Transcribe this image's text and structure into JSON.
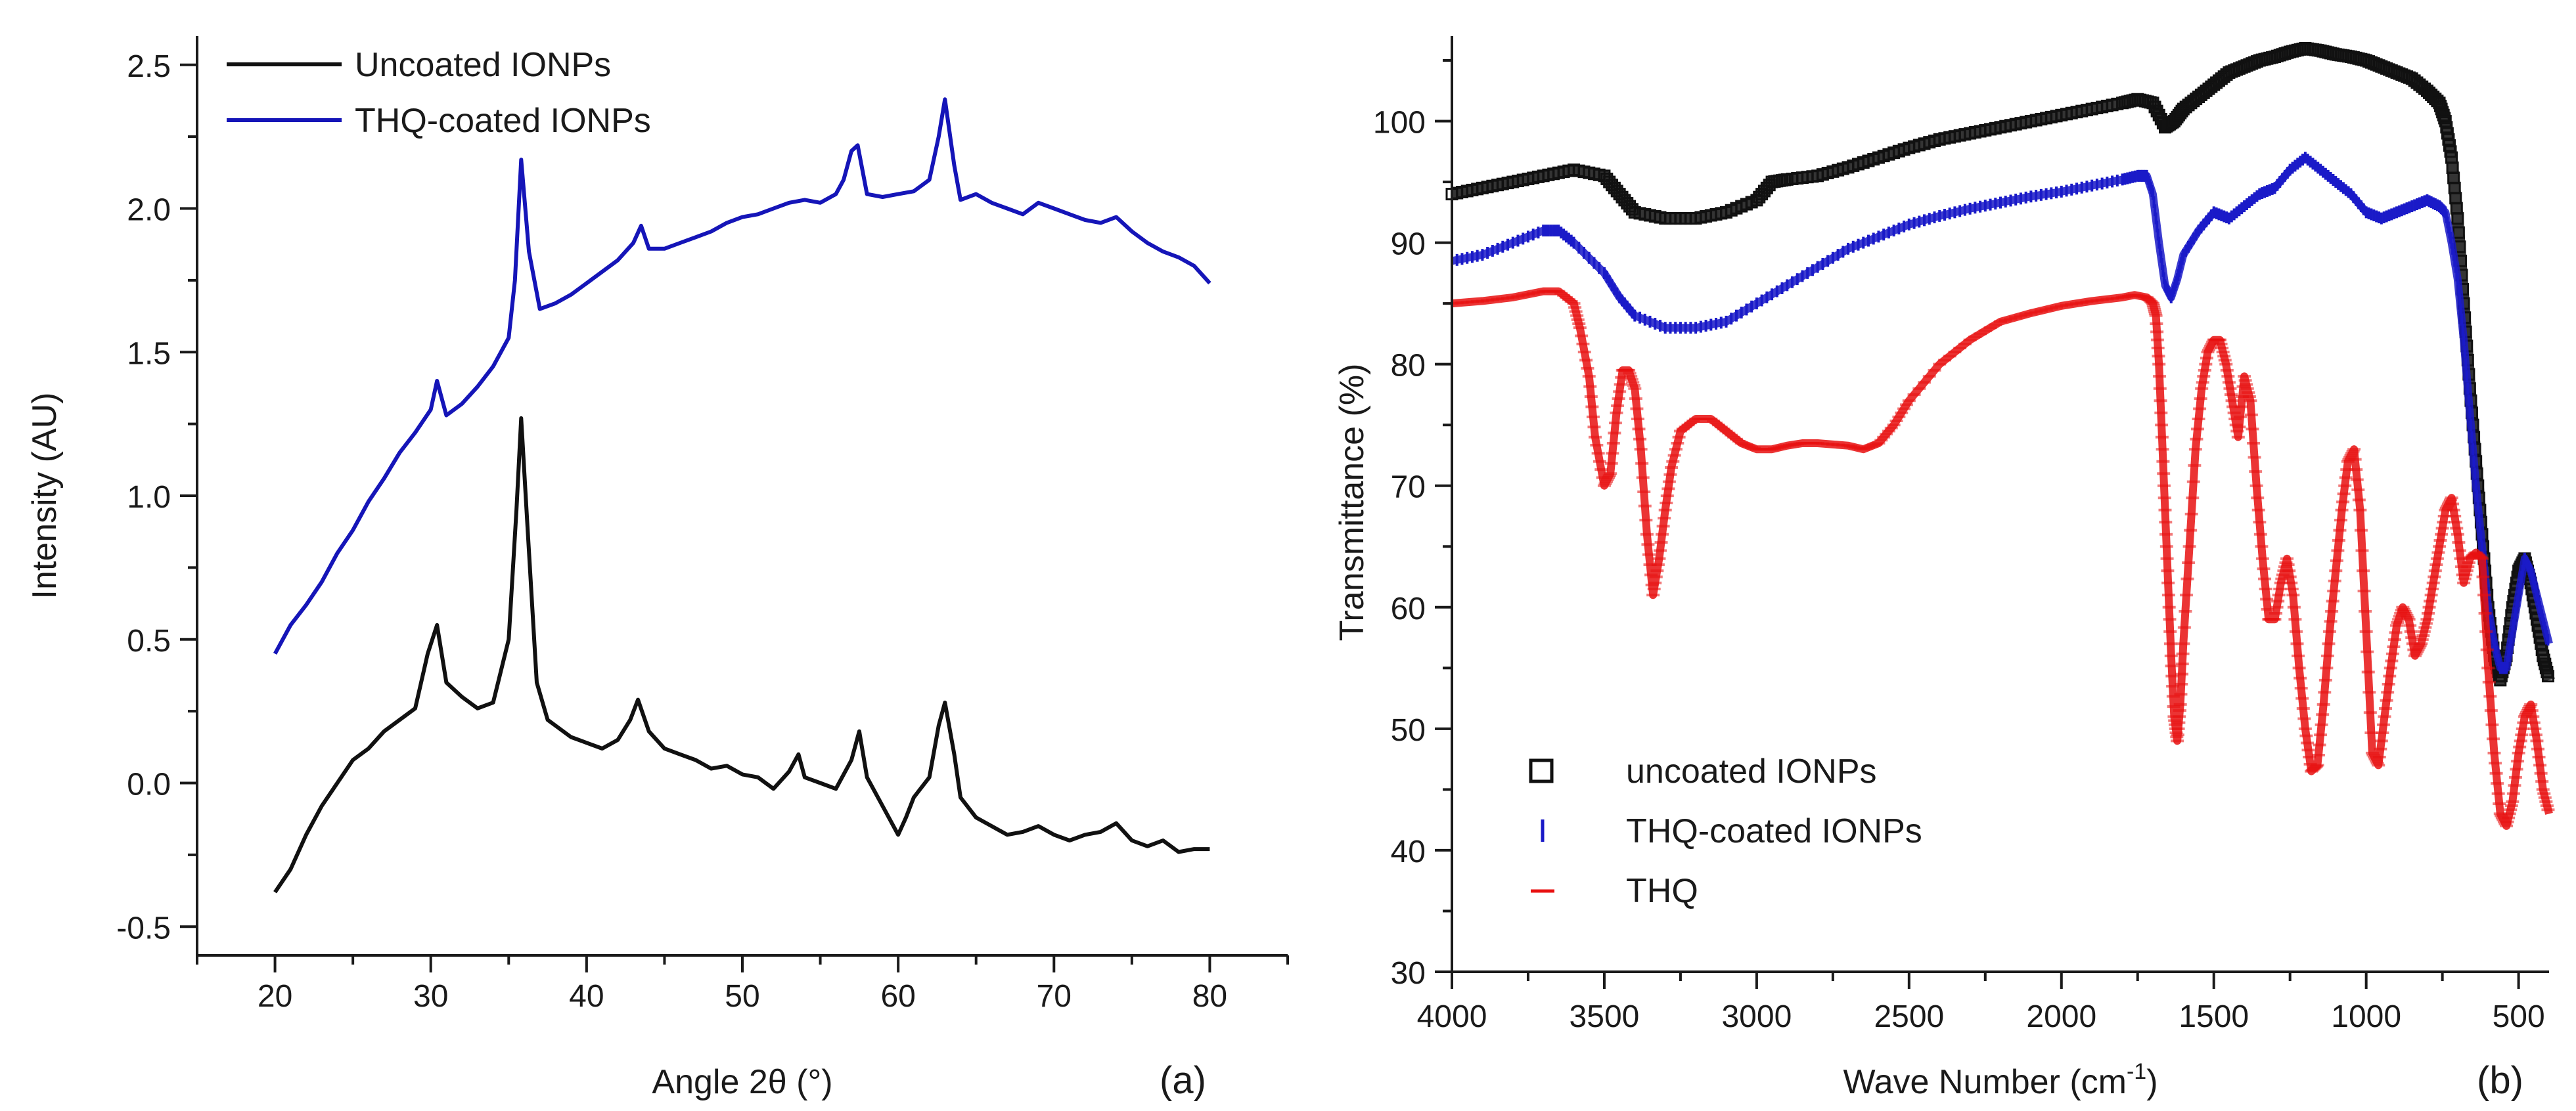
{
  "chart_data": [
    {
      "type": "line",
      "panel_label": "(a)",
      "xlabel": "Angle 2θ (°)",
      "ylabel": "Intensity (AU)",
      "xlim": [
        15,
        85
      ],
      "ylim": [
        -0.6,
        2.6
      ],
      "xticks": [
        20,
        30,
        40,
        50,
        60,
        70,
        80
      ],
      "xtick_labels": [
        "20",
        "30",
        "40",
        "50",
        "60",
        "70",
        "80"
      ],
      "yticks": [
        -0.5,
        0.0,
        0.5,
        1.0,
        1.5,
        2.0,
        2.5
      ],
      "ytick_labels": [
        "-0.5",
        "0.0",
        "0.5",
        "1.0",
        "1.5",
        "2.0",
        "2.5"
      ],
      "grid": false,
      "legend_position": "top-left",
      "series": [
        {
          "name": "Uncoated IONPs",
          "color": "#111111",
          "x": [
            20,
            21,
            22,
            23,
            24,
            25,
            26,
            27,
            28,
            29,
            29.8,
            30.4,
            31,
            32,
            33,
            34,
            35,
            35.5,
            35.8,
            36.2,
            36.8,
            37.5,
            38,
            39,
            40,
            41,
            42,
            42.8,
            43.3,
            44,
            45,
            46,
            47,
            48,
            49,
            50,
            51,
            52,
            53,
            53.6,
            54,
            55,
            56,
            57,
            57.5,
            58,
            59,
            60,
            60.5,
            61,
            62,
            62.6,
            63,
            63.6,
            64,
            65,
            66,
            67,
            68,
            69,
            70,
            71,
            72,
            73,
            74,
            75,
            76,
            77,
            78,
            79,
            80
          ],
          "y": [
            -0.38,
            -0.3,
            -0.18,
            -0.08,
            0.0,
            0.08,
            0.12,
            0.18,
            0.22,
            0.26,
            0.45,
            0.55,
            0.35,
            0.3,
            0.26,
            0.28,
            0.5,
            0.95,
            1.27,
            0.9,
            0.35,
            0.22,
            0.2,
            0.16,
            0.14,
            0.12,
            0.15,
            0.22,
            0.29,
            0.18,
            0.12,
            0.1,
            0.08,
            0.05,
            0.06,
            0.03,
            0.02,
            -0.02,
            0.04,
            0.1,
            0.02,
            0.0,
            -0.02,
            0.08,
            0.18,
            0.02,
            -0.08,
            -0.18,
            -0.12,
            -0.05,
            0.02,
            0.2,
            0.28,
            0.1,
            -0.05,
            -0.12,
            -0.15,
            -0.18,
            -0.17,
            -0.15,
            -0.18,
            -0.2,
            -0.18,
            -0.17,
            -0.14,
            -0.2,
            -0.22,
            -0.2,
            -0.24,
            -0.23,
            -0.23
          ]
        },
        {
          "name": "THQ-coated IONPs",
          "color": "#1515b8",
          "x": [
            20,
            21,
            22,
            23,
            24,
            25,
            26,
            27,
            28,
            29,
            30,
            30.4,
            31,
            32,
            33,
            34,
            35,
            35.4,
            35.8,
            36.3,
            37,
            38,
            39,
            40,
            41,
            42,
            43,
            43.5,
            44,
            45,
            46,
            47,
            48,
            49,
            50,
            51,
            52,
            53,
            54,
            55,
            56,
            56.5,
            57,
            57.4,
            58,
            59,
            60,
            61,
            62,
            62.6,
            63,
            63.6,
            64,
            65,
            66,
            67,
            68,
            69,
            70,
            71,
            72,
            73,
            74,
            75,
            76,
            77,
            78,
            79,
            80
          ],
          "y": [
            0.45,
            0.55,
            0.62,
            0.7,
            0.8,
            0.88,
            0.98,
            1.06,
            1.15,
            1.22,
            1.3,
            1.4,
            1.28,
            1.32,
            1.38,
            1.45,
            1.55,
            1.75,
            2.17,
            1.85,
            1.65,
            1.67,
            1.7,
            1.74,
            1.78,
            1.82,
            1.88,
            1.94,
            1.86,
            1.86,
            1.88,
            1.9,
            1.92,
            1.95,
            1.97,
            1.98,
            2.0,
            2.02,
            2.03,
            2.02,
            2.05,
            2.1,
            2.2,
            2.22,
            2.05,
            2.04,
            2.05,
            2.06,
            2.1,
            2.25,
            2.38,
            2.15,
            2.03,
            2.05,
            2.02,
            2.0,
            1.98,
            2.02,
            2.0,
            1.98,
            1.96,
            1.95,
            1.97,
            1.92,
            1.88,
            1.85,
            1.83,
            1.8,
            1.74
          ]
        }
      ]
    },
    {
      "type": "line",
      "panel_label": "(b)",
      "xlabel": "Wave Number (cm",
      "xlabel_superscript": "-1",
      "xlabel_suffix": ")",
      "ylabel": "Transmittance (%)",
      "xlim": [
        4000,
        400
      ],
      "x_reversed": true,
      "ylim": [
        30,
        107
      ],
      "xticks": [
        4000,
        3500,
        3000,
        2500,
        2000,
        1500,
        1000,
        500
      ],
      "xtick_labels": [
        "4000",
        "3500",
        "3000",
        "2500",
        "2000",
        "1500",
        "1000",
        "500"
      ],
      "yticks": [
        30,
        40,
        50,
        60,
        70,
        80,
        90,
        100
      ],
      "ytick_labels": [
        "30",
        "40",
        "50",
        "60",
        "70",
        "80",
        "90",
        "100"
      ],
      "grid": false,
      "legend_position": "bottom-left",
      "series": [
        {
          "name": "uncoated IONPs",
          "color": "#111111",
          "marker": "square",
          "x": [
            4000,
            3900,
            3800,
            3700,
            3600,
            3500,
            3450,
            3400,
            3300,
            3200,
            3100,
            3000,
            2950,
            2900,
            2800,
            2700,
            2600,
            2500,
            2400,
            2300,
            2200,
            2100,
            2000,
            1900,
            1800,
            1750,
            1700,
            1660,
            1630,
            1600,
            1550,
            1500,
            1450,
            1400,
            1350,
            1300,
            1250,
            1200,
            1150,
            1100,
            1050,
            1000,
            950,
            900,
            850,
            800,
            760,
            740,
            720,
            700,
            680,
            660,
            640,
            620,
            600,
            580,
            560,
            540,
            520,
            500,
            480,
            460,
            440,
            420,
            400
          ],
          "y": [
            94,
            94.5,
            95,
            95.5,
            96,
            95.5,
            94,
            92.5,
            92,
            92,
            92.5,
            93.5,
            95,
            95.2,
            95.5,
            96.2,
            97,
            97.8,
            98.5,
            99,
            99.5,
            100,
            100.5,
            101,
            101.5,
            101.8,
            101.5,
            99.5,
            100,
            101,
            102,
            103,
            104,
            104.5,
            105,
            105.3,
            105.7,
            106,
            105.8,
            105.5,
            105.3,
            105,
            104.5,
            104,
            103.5,
            102.5,
            101.5,
            100,
            97,
            92,
            85,
            78,
            72,
            66,
            60,
            56,
            54,
            56,
            60,
            63,
            64,
            62,
            59,
            56,
            54
          ]
        },
        {
          "name": "THQ-coated IONPs",
          "color": "#1a1ac8",
          "marker": "vline",
          "x": [
            4000,
            3900,
            3800,
            3700,
            3650,
            3600,
            3500,
            3450,
            3400,
            3300,
            3200,
            3100,
            3000,
            2900,
            2800,
            2700,
            2600,
            2500,
            2400,
            2300,
            2200,
            2100,
            2000,
            1900,
            1800,
            1750,
            1720,
            1700,
            1680,
            1660,
            1640,
            1620,
            1600,
            1550,
            1500,
            1450,
            1400,
            1350,
            1300,
            1250,
            1200,
            1150,
            1100,
            1050,
            1000,
            950,
            900,
            850,
            800,
            760,
            740,
            720,
            700,
            680,
            660,
            640,
            620,
            600,
            580,
            560,
            540,
            520,
            500,
            480,
            460,
            440,
            420,
            400
          ],
          "y": [
            88.5,
            89,
            90,
            91,
            91,
            90,
            87.5,
            85.5,
            84,
            83,
            83,
            83.5,
            85,
            86.5,
            88,
            89.5,
            90.5,
            91.5,
            92.2,
            92.8,
            93.3,
            93.8,
            94.2,
            94.7,
            95.2,
            95.5,
            95.5,
            94,
            90,
            86.5,
            85.5,
            87,
            89,
            91,
            92.5,
            92,
            93,
            94,
            94.5,
            96,
            97,
            96,
            95,
            94,
            92.5,
            92,
            92.5,
            93,
            93.5,
            93,
            92.5,
            90,
            87,
            82,
            76,
            70,
            65,
            60,
            57,
            55,
            55,
            58,
            61,
            64,
            63,
            61,
            59,
            57
          ]
        },
        {
          "name": "THQ",
          "color": "#e81010",
          "marker": "hline",
          "x": [
            4000,
            3900,
            3800,
            3700,
            3650,
            3600,
            3580,
            3550,
            3530,
            3500,
            3480,
            3460,
            3440,
            3420,
            3400,
            3380,
            3360,
            3340,
            3320,
            3300,
            3280,
            3250,
            3200,
            3150,
            3100,
            3050,
            3000,
            2950,
            2900,
            2850,
            2800,
            2700,
            2650,
            2600,
            2550,
            2500,
            2400,
            2300,
            2200,
            2100,
            2000,
            1900,
            1800,
            1760,
            1720,
            1700,
            1690,
            1680,
            1670,
            1660,
            1650,
            1640,
            1630,
            1620,
            1610,
            1600,
            1580,
            1560,
            1540,
            1520,
            1500,
            1480,
            1460,
            1440,
            1420,
            1400,
            1380,
            1360,
            1340,
            1320,
            1300,
            1280,
            1260,
            1240,
            1220,
            1200,
            1180,
            1160,
            1140,
            1120,
            1100,
            1080,
            1060,
            1040,
            1020,
            1000,
            980,
            960,
            940,
            920,
            900,
            880,
            860,
            840,
            820,
            800,
            780,
            760,
            740,
            720,
            700,
            680,
            660,
            640,
            620,
            600,
            580,
            560,
            540,
            520,
            500,
            480,
            460,
            440,
            420,
            400
          ],
          "y": [
            85,
            85.2,
            85.5,
            86,
            86,
            85,
            83,
            79,
            74,
            70,
            71,
            76,
            79.5,
            79.5,
            78,
            73,
            66,
            61,
            64,
            68,
            71.5,
            74.5,
            75.5,
            75.5,
            74.5,
            73.5,
            73,
            73,
            73.3,
            73.5,
            73.5,
            73.3,
            73,
            73.5,
            75,
            77,
            80,
            82,
            83.5,
            84.2,
            84.8,
            85.2,
            85.5,
            85.7,
            85.5,
            85,
            84,
            80,
            74,
            68,
            62,
            56,
            51,
            49,
            52,
            57,
            65,
            73,
            78,
            81,
            82,
            82,
            80,
            77,
            74,
            79,
            77,
            70,
            64,
            59,
            59,
            62,
            64,
            61,
            55,
            50,
            46.5,
            47,
            52,
            58,
            63,
            68,
            72,
            73,
            68,
            58,
            48,
            47,
            51,
            55,
            58.5,
            60,
            59,
            56,
            57,
            59,
            62,
            65,
            68,
            69,
            66,
            62,
            64,
            64.5,
            64,
            55,
            48,
            43,
            42,
            44,
            48,
            51,
            52,
            49,
            45,
            43
          ]
        }
      ]
    }
  ]
}
